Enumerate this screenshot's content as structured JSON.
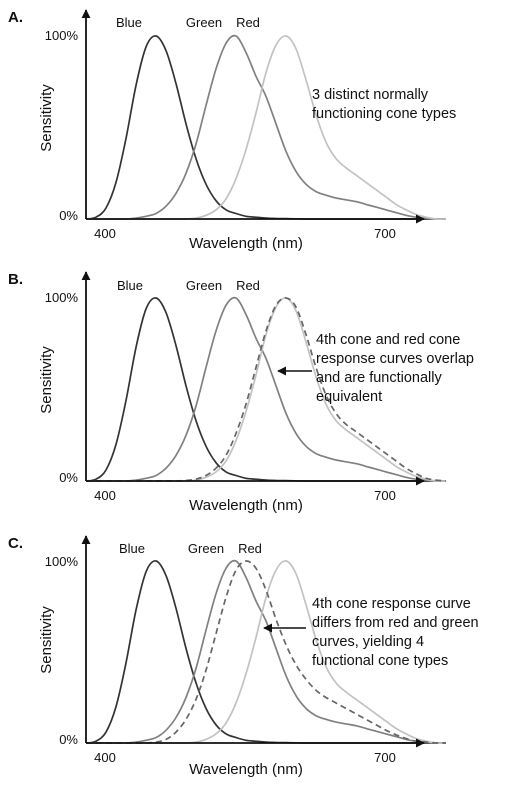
{
  "chart_data": [
    {
      "panel": "A.",
      "type": "line",
      "xlabel": "Wavelength (nm)",
      "ylabel": "Sensitivity",
      "x_ticks": [
        "400",
        "700"
      ],
      "y_ticks": [
        "0%",
        "100%"
      ],
      "xlim": [
        380,
        740
      ],
      "ylim": [
        0,
        100
      ],
      "x": [
        380,
        390,
        400,
        410,
        420,
        430,
        440,
        450,
        460,
        470,
        480,
        490,
        500,
        510,
        520,
        530,
        540,
        550,
        560,
        570,
        580,
        590,
        600,
        610,
        620,
        630,
        640,
        650,
        660,
        670,
        680,
        690,
        700,
        710,
        720,
        730,
        740
      ],
      "series": [
        {
          "name": "Blue",
          "color": "#333333",
          "dashed": false,
          "values": [
            0,
            1,
            6,
            20,
            44,
            73,
            94,
            100,
            92,
            74,
            52,
            33,
            19,
            10,
            5,
            3,
            1.5,
            1,
            0.5,
            0.3,
            0.2,
            0.1,
            0,
            0,
            0,
            0,
            0,
            0,
            0,
            0,
            0,
            0,
            0,
            0,
            0,
            0,
            0
          ]
        },
        {
          "name": "Green",
          "color": "#808080",
          "dashed": false,
          "values": [
            0,
            0,
            0,
            0,
            0,
            0.5,
            1.5,
            3,
            7,
            14,
            25,
            41,
            62,
            82,
            96,
            100,
            91,
            78,
            67,
            52,
            37,
            26,
            19,
            15,
            13,
            11.5,
            10.5,
            9.5,
            8,
            6.5,
            5,
            3.5,
            2,
            1,
            0.5,
            0,
            0
          ]
        },
        {
          "name": "Red",
          "color": "#c2c2c2",
          "dashed": false,
          "values": [
            0,
            0,
            0,
            0,
            0,
            0,
            0,
            0,
            0,
            0,
            0,
            0.5,
            2,
            5,
            11,
            22,
            38,
            58,
            80,
            95,
            100,
            93,
            76,
            57,
            42,
            33,
            28,
            24,
            20,
            16,
            12,
            8,
            5,
            2.5,
            1,
            0,
            0
          ]
        }
      ],
      "annotation": [
        "3 distinct normally",
        "functioning cone types"
      ]
    },
    {
      "panel": "B.",
      "type": "line",
      "xlabel": "Wavelength (nm)",
      "ylabel": "Sensitivity",
      "x_ticks": [
        "400",
        "700"
      ],
      "y_ticks": [
        "0%",
        "100%"
      ],
      "xlim": [
        380,
        740
      ],
      "ylim": [
        0,
        100
      ],
      "x": [
        380,
        390,
        400,
        410,
        420,
        430,
        440,
        450,
        460,
        470,
        480,
        490,
        500,
        510,
        520,
        530,
        540,
        550,
        560,
        570,
        580,
        590,
        600,
        610,
        620,
        630,
        640,
        650,
        660,
        670,
        680,
        690,
        700,
        710,
        720,
        730,
        740
      ],
      "series": [
        {
          "name": "Blue",
          "color": "#333333",
          "dashed": false,
          "values": [
            0,
            1,
            6,
            20,
            44,
            73,
            94,
            100,
            92,
            74,
            52,
            33,
            19,
            10,
            5,
            3,
            1.5,
            1,
            0.5,
            0.3,
            0.2,
            0.1,
            0,
            0,
            0,
            0,
            0,
            0,
            0,
            0,
            0,
            0,
            0,
            0,
            0,
            0,
            0
          ]
        },
        {
          "name": "Green",
          "color": "#808080",
          "dashed": false,
          "values": [
            0,
            0,
            0,
            0,
            0,
            0.5,
            1.5,
            3,
            7,
            14,
            25,
            41,
            62,
            82,
            96,
            100,
            91,
            78,
            67,
            52,
            37,
            26,
            19,
            15,
            13,
            11.5,
            10.5,
            9.5,
            8,
            6.5,
            5,
            3.5,
            2,
            1,
            0.5,
            0,
            0
          ]
        },
        {
          "name": "Red",
          "color": "#c2c2c2",
          "dashed": false,
          "values": [
            0,
            0,
            0,
            0,
            0,
            0,
            0,
            0,
            0,
            0,
            0,
            0.5,
            2,
            5,
            11,
            22,
            38,
            58,
            80,
            95,
            100,
            93,
            76,
            57,
            42,
            33,
            28,
            24,
            20,
            16,
            12,
            8,
            5,
            2.5,
            1,
            0,
            0
          ]
        },
        {
          "color": "#666666",
          "dashed": true,
          "values": [
            0,
            0,
            0,
            0,
            0,
            0,
            0,
            0,
            0,
            0,
            0.3,
            1,
            3,
            7,
            14,
            26,
            42,
            62,
            82,
            96,
            100,
            95,
            80,
            62,
            47,
            37,
            31,
            27,
            23,
            19,
            15,
            11,
            7,
            4,
            1.5,
            0.5,
            0
          ]
        }
      ],
      "annotation": [
        "4th cone and red cone",
        "response curves overlap",
        "and are functionally",
        "equivalent"
      ]
    },
    {
      "panel": "C.",
      "type": "line",
      "xlabel": "Wavelength (nm)",
      "ylabel": "Sensitivity",
      "x_ticks": [
        "400",
        "700"
      ],
      "y_ticks": [
        "0%",
        "100%"
      ],
      "xlim": [
        380,
        740
      ],
      "ylim": [
        0,
        100
      ],
      "x": [
        380,
        390,
        400,
        410,
        420,
        430,
        440,
        450,
        460,
        470,
        480,
        490,
        500,
        510,
        520,
        530,
        540,
        550,
        560,
        570,
        580,
        590,
        600,
        610,
        620,
        630,
        640,
        650,
        660,
        670,
        680,
        690,
        700,
        710,
        720,
        730,
        740
      ],
      "series": [
        {
          "name": "Blue",
          "color": "#333333",
          "dashed": false,
          "values": [
            0,
            1,
            6,
            20,
            44,
            73,
            94,
            100,
            92,
            74,
            52,
            33,
            19,
            10,
            5,
            3,
            1.5,
            1,
            0.5,
            0.3,
            0.2,
            0.1,
            0,
            0,
            0,
            0,
            0,
            0,
            0,
            0,
            0,
            0,
            0,
            0,
            0,
            0,
            0
          ]
        },
        {
          "name": "Green",
          "color": "#808080",
          "dashed": false,
          "values": [
            0,
            0,
            0,
            0,
            0,
            0.5,
            1.5,
            3,
            7,
            14,
            25,
            41,
            62,
            82,
            96,
            100,
            91,
            78,
            67,
            52,
            37,
            26,
            19,
            15,
            13,
            11.5,
            10.5,
            9.5,
            8,
            6.5,
            5,
            3.5,
            2,
            1,
            0.5,
            0,
            0
          ]
        },
        {
          "name": "Red",
          "color": "#c2c2c2",
          "dashed": false,
          "values": [
            0,
            0,
            0,
            0,
            0,
            0,
            0,
            0,
            0,
            0,
            0,
            0.5,
            2,
            5,
            11,
            22,
            38,
            58,
            80,
            95,
            100,
            93,
            76,
            57,
            42,
            33,
            28,
            24,
            20,
            16,
            12,
            8,
            5,
            2.5,
            1,
            0,
            0
          ]
        },
        {
          "color": "#666666",
          "dashed": true,
          "values": [
            0,
            0,
            0,
            0,
            0,
            0,
            0,
            0.5,
            2,
            6,
            13,
            24,
            40,
            60,
            80,
            95,
            100,
            96,
            84,
            68,
            54,
            43,
            35,
            29,
            25,
            22,
            19,
            16,
            13,
            10,
            7,
            4.5,
            2.5,
            1,
            0.5,
            0,
            0
          ]
        }
      ],
      "annotation": [
        "4th cone response curve",
        "differs from red and green",
        "curves, yielding 4",
        "functional cone types"
      ]
    }
  ]
}
